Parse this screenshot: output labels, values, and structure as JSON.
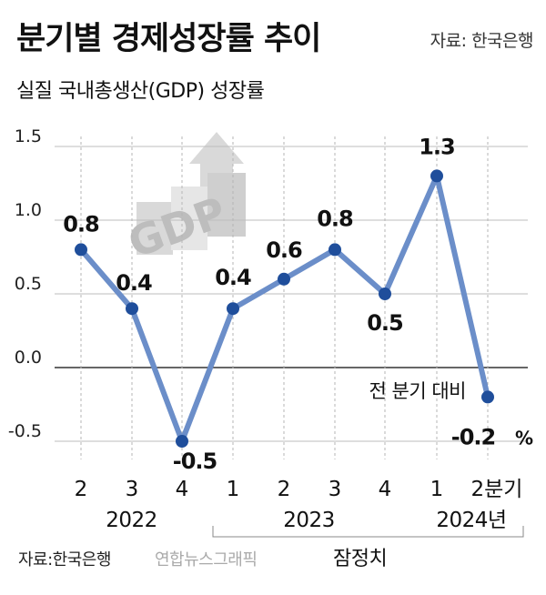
{
  "header": {
    "title": "분기별 경제성장률 추이",
    "source": "자료: 한국은행",
    "subtitle": "실질 국내총생산(GDP) 성장률"
  },
  "footer": {
    "source": "자료:한국은행",
    "credit": "연합뉴스그래픽",
    "note": "잠정치"
  },
  "colors": {
    "line": "#6b8ec9",
    "marker": "#1f4e9b",
    "grid": "#bdbdbd",
    "zero_line": "#333333",
    "decoration": "#d9d9d9"
  },
  "decoration": {
    "icon": "gdp-bar-arrow-icon",
    "text": "GDP"
  },
  "chart_data": {
    "type": "line",
    "title": "분기별 경제성장률 추이",
    "subtitle": "실질 국내총생산(GDP) 성장률",
    "ylim": [
      -0.5,
      1.5
    ],
    "yticks": [
      "1.5",
      "1.0",
      "0.5",
      "0.0",
      "-0.5"
    ],
    "ytick_values": [
      1.5,
      1.0,
      0.5,
      0.0,
      -0.5
    ],
    "grid": true,
    "categories": [
      "2",
      "3",
      "4",
      "1",
      "2",
      "3",
      "4",
      "1",
      "2분기"
    ],
    "values": [
      0.8,
      0.4,
      -0.5,
      0.4,
      0.6,
      0.8,
      0.5,
      1.3,
      -0.2
    ],
    "data_labels": [
      "0.8",
      "0.4",
      "-0.5",
      "0.4",
      "0.6",
      "0.8",
      "0.5",
      "1.3",
      "-0.2"
    ],
    "year_groups": [
      {
        "label": "2022",
        "start": 0,
        "end": 2
      },
      {
        "label": "2023",
        "start": 3,
        "end": 6
      },
      {
        "label": "2024년",
        "start": 7,
        "end": 8
      }
    ],
    "annotation": "전 분기 대비",
    "last_unit": "%"
  }
}
